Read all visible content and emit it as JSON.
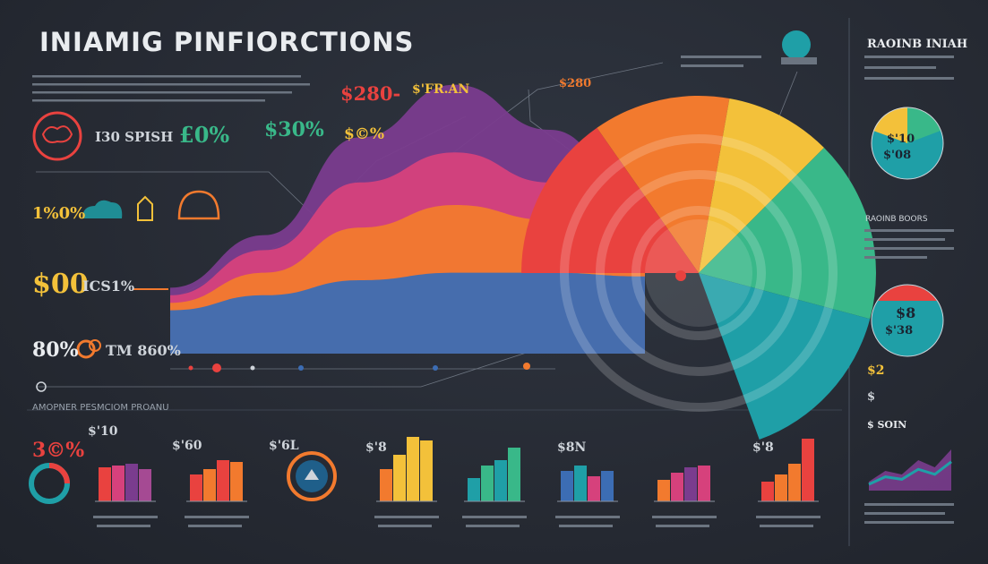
{
  "title": "INIAMIG PINFIORCTIONS",
  "colors": {
    "background": "#262b35",
    "red": "#e9423f",
    "orange": "#f27a2e",
    "yellow": "#f3c13a",
    "green": "#39b889",
    "teal": "#1f9fa7",
    "blue": "#3c6db4",
    "purple": "#7a3c8e",
    "pink": "#d6417c"
  },
  "icons": [
    "brain-icon",
    "cloud-icon",
    "hand-icon",
    "piggy-bank-icon",
    "coins-icon",
    "donut-icon",
    "clock-icon",
    "dollar-icon"
  ],
  "labels": {
    "l1": "I30 SPISH",
    "l2": "£0%",
    "l3": "$30%",
    "l4": "$©%",
    "l5": "1%0%",
    "l6": "$00",
    "l7": "ICS1%",
    "l8": "80%",
    "l9": "TM 860%",
    "top1": "$280-",
    "top2": "$'FR.AN",
    "top3": "$280",
    "br1": "$'10",
    "br2": "$'60",
    "br3": "$'6L",
    "br4": "$'8",
    "br5": "$8N",
    "br6": "$'8",
    "right_head": "RAOINB INIAH",
    "right_sub": "RAOINB BOORS",
    "circle1_line1": "$'10",
    "circle1_line2": "$'08",
    "circle2_line1": "$8",
    "circle2_line2": "$'38",
    "subhead": "AMOPNER PESMCIOM PROANU",
    "bottom_left_pct": "3©%",
    "right_small1": "$2",
    "right_small2": "$",
    "right_small3": "$ SOIN"
  },
  "chart_data": [
    {
      "type": "area",
      "series": [
        {
          "color": "#7a3c8e",
          "values": [
            8,
            22,
            48,
            62,
            50,
            30
          ]
        },
        {
          "color": "#d6417c",
          "values": [
            6,
            18,
            36,
            44,
            36,
            22
          ]
        },
        {
          "color": "#f27a2e",
          "values": [
            4,
            12,
            24,
            30,
            26,
            18
          ]
        },
        {
          "color": "#3c6db4",
          "values": [
            2,
            6,
            10,
            12,
            12,
            11
          ]
        }
      ]
    },
    {
      "type": "pie",
      "segments": [
        {
          "color": "#e9423f",
          "value": 0.22
        },
        {
          "color": "#f27a2e",
          "value": 0.18
        },
        {
          "color": "#f3c13a",
          "value": 0.14
        },
        {
          "color": "#39b889",
          "value": 0.24
        },
        {
          "color": "#1f9fa7",
          "value": 0.22
        }
      ]
    },
    {
      "type": "bar",
      "values": [
        38,
        40,
        42,
        36
      ],
      "colors": [
        "#e9423f",
        "#d6417c",
        "#7a3c8e",
        "#a54a93"
      ]
    },
    {
      "type": "bar",
      "values": [
        30,
        36,
        46,
        44
      ],
      "colors": [
        "#e9423f",
        "#f27a2e",
        "#e9423f",
        "#f27a2e"
      ]
    },
    {
      "type": "bar",
      "values": [
        36,
        52,
        72,
        68
      ],
      "colors": [
        "#f27a2e",
        "#f3c13a",
        "#f3c13a",
        "#f3c13a"
      ]
    },
    {
      "type": "bar",
      "values": [
        26,
        40,
        46,
        60
      ],
      "colors": [
        "#1f9fa7",
        "#39b889",
        "#1f9fa7",
        "#39b889"
      ]
    },
    {
      "type": "bar",
      "values": [
        34,
        40,
        28,
        34
      ],
      "colors": [
        "#3c6db4",
        "#1f9fa7",
        "#d6417c",
        "#3c6db4"
      ]
    },
    {
      "type": "bar",
      "values": [
        24,
        32,
        38,
        40
      ],
      "colors": [
        "#f27a2e",
        "#d6417c",
        "#7a3c8e",
        "#d6417c"
      ]
    },
    {
      "type": "bar",
      "values": [
        22,
        30,
        42,
        70
      ],
      "colors": [
        "#e9423f",
        "#f27a2e",
        "#f27a2e",
        "#e9423f"
      ]
    },
    {
      "type": "area",
      "values": [
        10,
        22,
        18,
        34,
        26,
        46
      ],
      "colors": [
        "#7a3c8e",
        "#1f9fa7"
      ]
    }
  ]
}
